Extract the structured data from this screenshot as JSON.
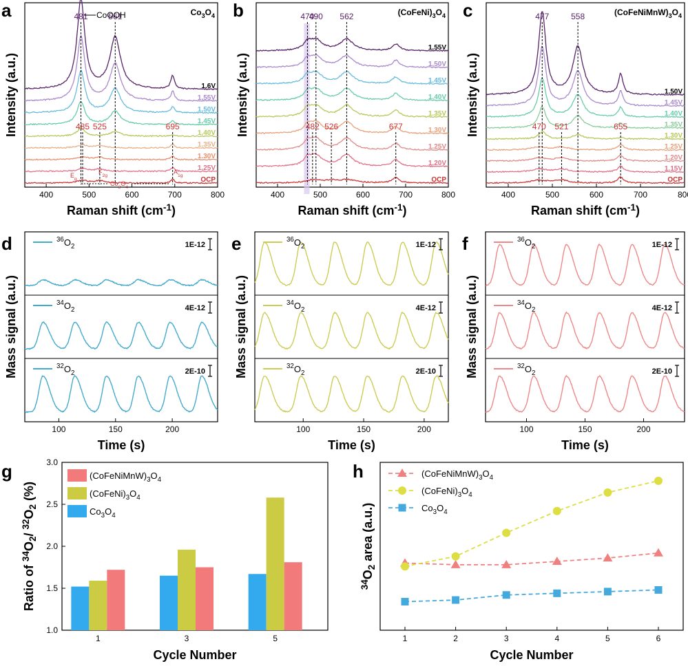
{
  "chart_data": [
    {
      "panel": "a",
      "type": "line",
      "material": "Co₃O₄",
      "xlabel": "Raman shift (cm⁻¹)",
      "ylabel": "Intensity (a.u.)",
      "xlim": [
        350,
        800
      ],
      "xticks": [
        400,
        500,
        600,
        700,
        800
      ],
      "series": [
        {
          "name": "OCP",
          "color": "#cc3333"
        },
        {
          "name": "1.25V",
          "color": "#e07088"
        },
        {
          "name": "1.30V",
          "color": "#e8906e"
        },
        {
          "name": "1.35V",
          "color": "#e8b088"
        },
        {
          "name": "1.40V",
          "color": "#b5c95a"
        },
        {
          "name": "1.45V",
          "color": "#66ccaa"
        },
        {
          "name": "1.50V",
          "color": "#66bbdd"
        },
        {
          "name": "1.55V",
          "color": "#aa88cc"
        },
        {
          "name": "1.6V",
          "color": "#552266"
        }
      ],
      "peaks": [
        {
          "label": "481",
          "x": 481,
          "color": "#552266"
        },
        {
          "label": "561",
          "x": 561,
          "color": "#552266"
        },
        {
          "label": "695",
          "x": 695,
          "color": "#cc3333"
        },
        {
          "label": "525",
          "x": 525,
          "color": "#cc3333"
        },
        {
          "label": "485",
          "x": 485,
          "color": "#cc3333"
        }
      ],
      "annotations": [
        "CoOOH",
        "E",
        "g",
        "F",
        "2g",
        "A",
        "1g",
        "Co",
        "3",
        "O",
        "4"
      ]
    },
    {
      "panel": "b",
      "type": "line",
      "material": "(CoFeNi)₃O₄",
      "xlabel": "Raman shift (cm⁻¹)",
      "ylabel": "Intensity (a.u.)",
      "xlim": [
        350,
        800
      ],
      "xticks": [
        400,
        500,
        600,
        700,
        800
      ],
      "series": [
        {
          "name": "OCP",
          "color": "#cc3333"
        },
        {
          "name": "1.20V",
          "color": "#e07088"
        },
        {
          "name": "1.25V",
          "color": "#e08a8a"
        },
        {
          "name": "1.30V",
          "color": "#e8a07a"
        },
        {
          "name": "1.35V",
          "color": "#b5c95a"
        },
        {
          "name": "1.40V",
          "color": "#66ccaa"
        },
        {
          "name": "1.45V",
          "color": "#66bbdd"
        },
        {
          "name": "1.50V",
          "color": "#aa88cc"
        },
        {
          "name": "1.55V",
          "color": "#552266"
        }
      ],
      "peaks": [
        {
          "label": "470",
          "x": 470,
          "color": "#552266"
        },
        {
          "label": "490",
          "x": 490,
          "color": "#552266"
        },
        {
          "label": "562",
          "x": 562,
          "color": "#552266"
        },
        {
          "label": "677",
          "x": 677,
          "color": "#cc3333"
        },
        {
          "label": "482",
          "x": 482,
          "color": "#cc3333"
        },
        {
          "label": "526",
          "x": 526,
          "color": "#cc3333"
        }
      ]
    },
    {
      "panel": "c",
      "type": "line",
      "material": "(CoFeNiMnW)₃O₄",
      "xlabel": "Raman shift (cm⁻¹)",
      "ylabel": "Intensity (a.u.)",
      "xlim": [
        350,
        800
      ],
      "xticks": [
        400,
        500,
        600,
        700,
        800
      ],
      "series": [
        {
          "name": "OCP",
          "color": "#cc3333"
        },
        {
          "name": "1.15V",
          "color": "#e07088"
        },
        {
          "name": "1.20V",
          "color": "#e08a8a"
        },
        {
          "name": "1.25V",
          "color": "#e8a07a"
        },
        {
          "name": "1.30V",
          "color": "#b5c95a"
        },
        {
          "name": "1.35V",
          "color": "#88cc99"
        },
        {
          "name": "1.40V",
          "color": "#66ccaa"
        },
        {
          "name": "1.45V",
          "color": "#aa88cc"
        },
        {
          "name": "1.50V",
          "color": "#552266"
        }
      ],
      "peaks": [
        {
          "label": "477",
          "x": 477,
          "color": "#552266"
        },
        {
          "label": "558",
          "x": 558,
          "color": "#552266"
        },
        {
          "label": "655",
          "x": 655,
          "color": "#cc3333"
        },
        {
          "label": "470",
          "x": 470,
          "color": "#cc3333"
        },
        {
          "label": "521",
          "x": 521,
          "color": "#cc3333"
        }
      ]
    },
    {
      "panel": "d",
      "type": "line",
      "color": "#44aacc",
      "xlabel": "Time (s)",
      "ylabel": "Mass signal (a.u.)",
      "xlim": [
        70,
        240
      ],
      "xticks": [
        100,
        150,
        200
      ],
      "peak_times": [
        86,
        114,
        142,
        170,
        198,
        226
      ],
      "subplots": [
        {
          "label": "36",
          "species": "O",
          "sub": "2",
          "scale": "1E-12",
          "amplitude": 0.12
        },
        {
          "label": "34",
          "species": "O",
          "sub": "2",
          "scale": "4E-12",
          "amplitude": 0.55
        },
        {
          "label": "32",
          "species": "O",
          "sub": "2",
          "scale": "2E-10",
          "amplitude": 0.75
        }
      ]
    },
    {
      "panel": "e",
      "type": "line",
      "color": "#cccc55",
      "xlabel": "Time (s)",
      "ylabel": "Mass signal (a.u.)",
      "xlim": [
        60,
        220
      ],
      "xticks": [
        100,
        150,
        200
      ],
      "peak_times": [
        68,
        98,
        126,
        153,
        182,
        210
      ],
      "subplots": [
        {
          "label": "36",
          "species": "O",
          "sub": "2",
          "scale": "1E-12",
          "amplitude": 0.9
        },
        {
          "label": "34",
          "species": "O",
          "sub": "2",
          "scale": "4E-12",
          "amplitude": 0.75
        },
        {
          "label": "32",
          "species": "O",
          "sub": "2",
          "scale": "2E-10",
          "amplitude": 0.75
        }
      ]
    },
    {
      "panel": "f",
      "type": "line",
      "color": "#ee8888",
      "xlabel": "Time (s)",
      "ylabel": "Mass signal (a.u.)",
      "xlim": [
        65,
        235
      ],
      "xticks": [
        100,
        150,
        200
      ],
      "peak_times": [
        77,
        106,
        134,
        162,
        190,
        218
      ],
      "subplots": [
        {
          "label": "36",
          "species": "O",
          "sub": "2",
          "scale": "1E-12",
          "amplitude": 0.85
        },
        {
          "label": "34",
          "species": "O",
          "sub": "2",
          "scale": "4E-12",
          "amplitude": 0.75
        },
        {
          "label": "32",
          "species": "O",
          "sub": "2",
          "scale": "2E-10",
          "amplitude": 0.75
        }
      ]
    },
    {
      "panel": "g",
      "type": "bar",
      "xlabel": "Cycle Number",
      "ylabel": "Ratio of ³⁴O₂/ ³²O₂ (%)",
      "ylim": [
        1.0,
        3.0
      ],
      "yticks": [
        "1.0",
        "1.5",
        "2.0",
        "2.5",
        "3.0"
      ],
      "categories": [
        "1",
        "3",
        "5"
      ],
      "series": [
        {
          "name": "Co₃O₄",
          "color": "#33aaee",
          "values": [
            1.52,
            1.65,
            1.67
          ]
        },
        {
          "name": "(CoFeNi)₃O₄",
          "color": "#cccc44",
          "values": [
            1.59,
            1.96,
            2.58
          ]
        },
        {
          "name": "(CoFeNiMnW)₃O₄",
          "color": "#f27a7a",
          "values": [
            1.72,
            1.75,
            1.81
          ]
        }
      ],
      "legend_order": [
        "(CoFeNiMnW)₃O₄",
        "(CoFeNi)₃O₄",
        "Co₃O₄"
      ],
      "legend": "top-left"
    },
    {
      "panel": "h",
      "type": "line",
      "xlabel": "Cycle Number",
      "ylabel": "³⁴O₂ area (a.u.)",
      "x": [
        "1",
        "2",
        "3",
        "4",
        "5",
        "6"
      ],
      "ylim": [
        0,
        1
      ],
      "series": [
        {
          "name": "(CoFeNiMnW)₃O₄",
          "color": "#f08080",
          "marker": "triangle",
          "values": [
            0.4,
            0.39,
            0.39,
            0.41,
            0.43,
            0.46
          ]
        },
        {
          "name": "(CoFeNi)₃O₄",
          "color": "#dddd44",
          "marker": "circle",
          "values": [
            0.38,
            0.44,
            0.58,
            0.71,
            0.82,
            0.89
          ]
        },
        {
          "name": "Co₃O₄",
          "color": "#44aadd",
          "marker": "square",
          "values": [
            0.17,
            0.18,
            0.21,
            0.22,
            0.23,
            0.24
          ]
        }
      ],
      "legend": "top-left"
    }
  ]
}
